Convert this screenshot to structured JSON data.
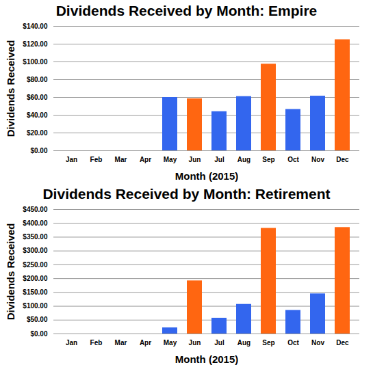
{
  "chart_data": [
    {
      "type": "bar",
      "title": "Dividends Received by Month: Empire",
      "x_label": "Month (2015)",
      "y_label": "Dividends Received",
      "categories": [
        "Jan",
        "Feb",
        "Mar",
        "Apr",
        "May",
        "Jun",
        "Jul",
        "Aug",
        "Sep",
        "Oct",
        "Nov",
        "Dec"
      ],
      "values": [
        0,
        0,
        0,
        0,
        60,
        58.5,
        44,
        61,
        97.5,
        46.5,
        61.5,
        125
      ],
      "colors": [
        "#3366ee",
        "#3366ee",
        "#3366ee",
        "#3366ee",
        "#3366ee",
        "#ff6611",
        "#3366ee",
        "#3366ee",
        "#ff6611",
        "#3366ee",
        "#3366ee",
        "#ff6611"
      ],
      "ylim": [
        0,
        140
      ],
      "yticks": [
        {
          "value": 0,
          "label": "$0.00"
        },
        {
          "value": 20,
          "label": "$20.00"
        },
        {
          "value": 40,
          "label": "$40.00"
        },
        {
          "value": 60,
          "label": "$60.00"
        },
        {
          "value": 80,
          "label": "$80.00"
        },
        {
          "value": 100,
          "label": "$100.00"
        },
        {
          "value": 120,
          "label": "$120.00"
        },
        {
          "value": 140,
          "label": "$140.00"
        }
      ],
      "grid": true
    },
    {
      "type": "bar",
      "title": "Dividends Received by Month: Retirement",
      "x_label": "Month (2015)",
      "y_label": "Dividends Received",
      "categories": [
        "Jan",
        "Feb",
        "Mar",
        "Apr",
        "May",
        "Jun",
        "Jul",
        "Aug",
        "Sep",
        "Oct",
        "Nov",
        "Dec"
      ],
      "values": [
        0,
        0,
        0,
        0,
        22,
        192,
        57,
        107,
        382,
        85,
        145,
        385
      ],
      "colors": [
        "#3366ee",
        "#3366ee",
        "#3366ee",
        "#3366ee",
        "#3366ee",
        "#ff6611",
        "#3366ee",
        "#3366ee",
        "#ff6611",
        "#3366ee",
        "#3366ee",
        "#ff6611"
      ],
      "ylim": [
        0,
        450
      ],
      "yticks": [
        {
          "value": 0,
          "label": "$0.00"
        },
        {
          "value": 50,
          "label": "$50.00"
        },
        {
          "value": 100,
          "label": "$100.00"
        },
        {
          "value": 150,
          "label": "$150.00"
        },
        {
          "value": 200,
          "label": "$200.00"
        },
        {
          "value": 250,
          "label": "$250.00"
        },
        {
          "value": 300,
          "label": "$300.00"
        },
        {
          "value": 350,
          "label": "$350.00"
        },
        {
          "value": 400,
          "label": "$400.00"
        },
        {
          "value": 450,
          "label": "$450.00"
        }
      ],
      "grid": true
    }
  ]
}
